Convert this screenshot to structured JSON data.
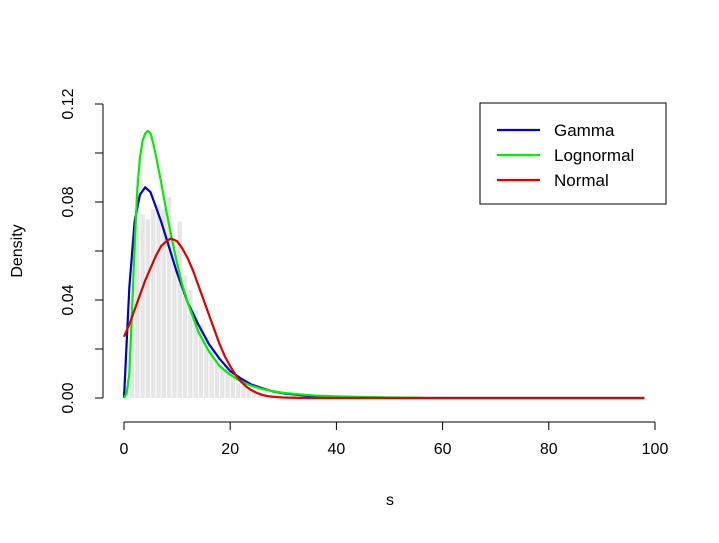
{
  "chart_data": {
    "type": "line",
    "xlabel": "s",
    "ylabel": "Density",
    "xlim": [
      0,
      100
    ],
    "ylim": [
      0,
      0.12
    ],
    "x_ticks": [
      0,
      20,
      40,
      60,
      80,
      100
    ],
    "x_tick_labels": [
      "0",
      "20",
      "40",
      "60",
      "80",
      "100"
    ],
    "y_ticks": [
      0.0,
      0.02,
      0.04,
      0.06,
      0.08,
      0.1,
      0.12
    ],
    "y_tick_labels": [
      "0.00",
      "",
      "0.04",
      "",
      "0.08",
      "",
      "0.12"
    ],
    "grid": false,
    "legend_position": "top-right",
    "histogram": {
      "color": "#e6e6e6",
      "bin_width": 1,
      "bins_start": [
        0,
        1,
        2,
        3,
        4,
        5,
        6,
        7,
        8,
        9,
        10,
        11,
        12,
        13,
        14,
        15,
        16,
        17,
        18,
        19,
        20,
        21,
        22,
        23,
        24,
        25,
        26,
        27,
        28,
        29,
        30
      ],
      "density": [
        0.005,
        0.035,
        0.07,
        0.075,
        0.073,
        0.077,
        0.079,
        0.077,
        0.082,
        0.064,
        0.072,
        0.05,
        0.044,
        0.036,
        0.03,
        0.025,
        0.02,
        0.016,
        0.013,
        0.01,
        0.008,
        0.006,
        0.005,
        0.004,
        0.003,
        0.002,
        0.0015,
        0.001,
        0.0008,
        0.0005,
        0.0003
      ]
    },
    "series": [
      {
        "name": "Gamma",
        "color": "#0000cc",
        "x": [
          0,
          1,
          2,
          3,
          4,
          5,
          6,
          7,
          8,
          9,
          10,
          12,
          14,
          16,
          18,
          20,
          22,
          24,
          26,
          28,
          30,
          35,
          40,
          45,
          50,
          55,
          60,
          65,
          70,
          75,
          80,
          85,
          90,
          95,
          98
        ],
        "y": [
          0.0,
          0.045,
          0.072,
          0.083,
          0.086,
          0.084,
          0.078,
          0.072,
          0.065,
          0.058,
          0.051,
          0.039,
          0.03,
          0.022,
          0.016,
          0.011,
          0.008,
          0.0055,
          0.004,
          0.0027,
          0.0019,
          0.0008,
          0.0003,
          0.0001,
          0,
          0,
          0,
          0,
          0,
          0,
          0,
          0,
          0,
          0,
          0
        ]
      },
      {
        "name": "Lognormal",
        "color": "#00ee00",
        "x": [
          0,
          0.5,
          1,
          1.5,
          2,
          2.5,
          3,
          3.5,
          4,
          4.5,
          5,
          5.5,
          6,
          7,
          8,
          9,
          10,
          11,
          12,
          14,
          16,
          18,
          20,
          22,
          24,
          26,
          28,
          30,
          33,
          36,
          40,
          45,
          50,
          56
        ],
        "y": [
          0.0,
          0.002,
          0.01,
          0.035,
          0.062,
          0.085,
          0.098,
          0.105,
          0.108,
          0.109,
          0.108,
          0.104,
          0.099,
          0.088,
          0.076,
          0.065,
          0.055,
          0.046,
          0.039,
          0.027,
          0.019,
          0.013,
          0.0095,
          0.0068,
          0.005,
          0.0037,
          0.0028,
          0.0021,
          0.0015,
          0.001,
          0.0007,
          0.0004,
          0.0002,
          0.0001
        ]
      },
      {
        "name": "Normal",
        "color": "#dd0000",
        "x": [
          0,
          1,
          2,
          3,
          4,
          5,
          6,
          7,
          8,
          8.7,
          9,
          10,
          11,
          12,
          13,
          14,
          15,
          16,
          17,
          18,
          19,
          20,
          21,
          22,
          23,
          24,
          25,
          26,
          27,
          28,
          30,
          32,
          35,
          40,
          50,
          60,
          70,
          80,
          90,
          98
        ],
        "y": [
          0.025,
          0.03,
          0.036,
          0.042,
          0.048,
          0.053,
          0.058,
          0.062,
          0.064,
          0.065,
          0.065,
          0.064,
          0.061,
          0.057,
          0.052,
          0.046,
          0.04,
          0.034,
          0.028,
          0.022,
          0.017,
          0.013,
          0.0095,
          0.0068,
          0.0047,
          0.0032,
          0.0021,
          0.0013,
          0.0008,
          0.0005,
          0.0002,
          0.0001,
          0,
          0,
          0,
          0,
          0,
          0,
          0,
          0
        ]
      }
    ]
  }
}
